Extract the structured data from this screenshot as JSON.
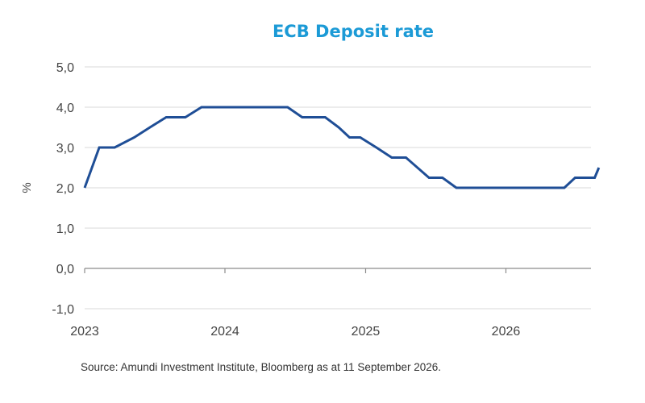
{
  "chart_data": {
    "type": "line",
    "title": "ECB Deposit rate",
    "ylabel": "%",
    "xlabel": "",
    "ylim": [
      -1.0,
      5.0
    ],
    "xlim": [
      "2023-01-01",
      "2026-08-31"
    ],
    "yticks": [
      "5,0",
      "4,0",
      "3,0",
      "2,0",
      "1,0",
      "0,0",
      "-1,0"
    ],
    "ytick_values": [
      5,
      4,
      3,
      2,
      1,
      0,
      -1
    ],
    "xticks": [
      "2023",
      "2024",
      "2025",
      "2026"
    ],
    "xtick_dates": [
      "2023-01-01",
      "2024-01-01",
      "2025-01-01",
      "2026-01-01"
    ],
    "grid": "horizontal",
    "legend": "none",
    "color": "#1f4e96",
    "title_color": "#1b9ad6",
    "series": [
      {
        "points": [
          [
            "2023-01-01",
            2.0
          ],
          [
            "2023-02-08",
            3.0
          ],
          [
            "2023-03-20",
            3.0
          ],
          [
            "2023-05-10",
            3.25
          ],
          [
            "2023-06-20",
            3.5
          ],
          [
            "2023-08-01",
            3.75
          ],
          [
            "2023-09-20",
            3.75
          ],
          [
            "2023-11-01",
            4.0
          ],
          [
            "2024-06-12",
            4.0
          ],
          [
            "2024-07-20",
            3.75
          ],
          [
            "2024-09-18",
            3.75
          ],
          [
            "2024-10-23",
            3.5
          ],
          [
            "2024-11-20",
            3.25
          ],
          [
            "2024-12-18",
            3.25
          ],
          [
            "2025-01-29",
            3.0
          ],
          [
            "2025-03-10",
            2.75
          ],
          [
            "2025-04-16",
            2.75
          ],
          [
            "2025-06-15",
            2.25
          ],
          [
            "2025-07-20",
            2.25
          ],
          [
            "2025-08-25",
            2.0
          ],
          [
            "2026-06-02",
            2.0
          ],
          [
            "2026-06-30",
            2.25
          ],
          [
            "2026-08-20",
            2.25
          ],
          [
            "2026-08-31",
            2.5
          ]
        ]
      }
    ]
  },
  "source": "Source:  Amundi Investment Institute, Bloomberg  as at 11 September  2026."
}
